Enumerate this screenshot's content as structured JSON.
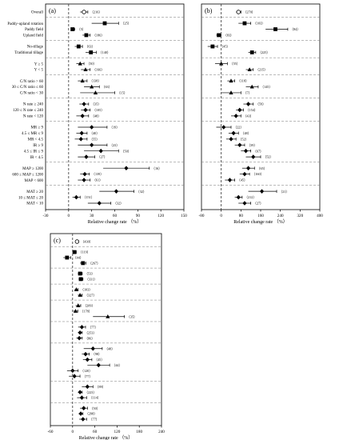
{
  "chart_data": [
    {
      "type": "forest",
      "panel_label": "(a)",
      "xlabel": "Relative change rate （%）",
      "xlim": [
        -30,
        150
      ],
      "xticks": [
        -30,
        0,
        30,
        60,
        90,
        120,
        150
      ],
      "groups": [
        [
          {
            "label": "Overall",
            "mean": 20,
            "lo": 15,
            "hi": 25,
            "n": "216",
            "marker": "circle-open"
          }
        ],
        [
          {
            "label": "Paddy-upland rotation",
            "mean": 47,
            "lo": 30,
            "hi": 65,
            "n": "25",
            "marker": "square"
          },
          {
            "label": "Paddy field",
            "mean": 5,
            "lo": 3,
            "hi": 8,
            "n": "5",
            "marker": "square"
          },
          {
            "label": "Upland field",
            "mean": 23,
            "lo": 18,
            "hi": 28,
            "n": "186",
            "marker": "square"
          }
        ],
        [
          {
            "label": "No-tillage",
            "mean": 13,
            "lo": 8,
            "hi": 18,
            "n": "63",
            "marker": "square"
          },
          {
            "label": "Traditional tillage",
            "mean": 29,
            "lo": 22,
            "hi": 36,
            "n": "140",
            "marker": "square"
          }
        ],
        [
          {
            "label": "Y ≥ 5",
            "mean": 15,
            "lo": 10,
            "hi": 20,
            "n": "50",
            "marker": "triangle"
          },
          {
            "label": "Y < 5",
            "mean": 22,
            "lo": 16,
            "hi": 28,
            "n": "166",
            "marker": "triangle"
          }
        ],
        [
          {
            "label": "C/N ratio > 60",
            "mean": 18,
            "lo": 12,
            "hi": 24,
            "n": "138",
            "marker": "triangle"
          },
          {
            "label": "30 ≤ C/N ratio ≤ 60",
            "mean": 30,
            "lo": 20,
            "hi": 40,
            "n": "63",
            "marker": "triangle"
          },
          {
            "label": "C/N ratio < 30",
            "mean": 35,
            "lo": 15,
            "hi": 60,
            "n": "15",
            "marker": "triangle"
          }
        ],
        [
          {
            "label": "N rate ≥ 240",
            "mean": 20,
            "lo": 14,
            "hi": 26,
            "n": "35",
            "marker": "diamond"
          },
          {
            "label": "120 ≤ N rate ≤ 240",
            "mean": 22,
            "lo": 16,
            "hi": 28,
            "n": "105",
            "marker": "diamond"
          },
          {
            "label": "N rate < 120",
            "mean": 18,
            "lo": 10,
            "hi": 26,
            "n": "48",
            "marker": "diamond"
          }
        ],
        [
          {
            "label": "MR ≥ 9",
            "mean": 30,
            "lo": 12,
            "hi": 50,
            "n": "19",
            "marker": "diamond"
          },
          {
            "label": "4.5 ≤ MR ≤ 9",
            "mean": 17,
            "lo": 10,
            "hi": 24,
            "n": "40",
            "marker": "diamond"
          },
          {
            "label": "MR < 4.5",
            "mean": 16,
            "lo": 8,
            "hi": 24,
            "n": "55",
            "marker": "diamond"
          },
          {
            "label": "IR ≥ 9",
            "mean": 30,
            "lo": 12,
            "hi": 50,
            "n": "23",
            "marker": "diamond"
          },
          {
            "label": "4.5 ≤ IR ≤ 9",
            "mean": 42,
            "lo": 20,
            "hi": 65,
            "n": "50",
            "marker": "diamond"
          },
          {
            "label": "IR < 4.5",
            "mean": 23,
            "lo": 12,
            "hi": 34,
            "n": "27",
            "marker": "diamond"
          }
        ],
        [
          {
            "label": "MAP ≥ 1200",
            "mean": 75,
            "lo": 45,
            "hi": 105,
            "n": "16",
            "marker": "diamond"
          },
          {
            "label": "600 ≤ MAP ≤ 1200",
            "mean": 21,
            "lo": 15,
            "hi": 27,
            "n": "139",
            "marker": "diamond"
          },
          {
            "label": "MAP < 600",
            "mean": 20,
            "lo": 12,
            "hi": 28,
            "n": "61",
            "marker": "diamond"
          }
        ],
        [
          {
            "label": "MAT ≥ 20",
            "mean": 62,
            "lo": 40,
            "hi": 85,
            "n": "32",
            "marker": "diamond"
          },
          {
            "label": "10 ≤ MAT ≤ 20",
            "mean": 10,
            "lo": 5,
            "hi": 15,
            "n": "151",
            "marker": "diamond"
          },
          {
            "label": "MAT < 10",
            "mean": 40,
            "lo": 25,
            "hi": 55,
            "n": "32",
            "marker": "diamond"
          }
        ]
      ]
    },
    {
      "type": "forest",
      "panel_label": "(b)",
      "xlabel": "Relative change rate （%）",
      "xlim": [
        -80,
        400
      ],
      "xticks": [
        -80,
        0,
        80,
        160,
        240,
        320,
        400
      ],
      "groups": [
        [
          {
            "label": "",
            "mean": 70,
            "lo": 60,
            "hi": 80,
            "n": "270",
            "marker": "circle-open"
          }
        ],
        [
          {
            "label": "",
            "mean": 95,
            "lo": 70,
            "hi": 120,
            "n": "103",
            "marker": "square"
          },
          {
            "label": "",
            "mean": 220,
            "lo": 180,
            "hi": 270,
            "n": "84",
            "marker": "square"
          },
          {
            "label": "",
            "mean": -10,
            "lo": -20,
            "hi": 0,
            "n": "83",
            "marker": "square"
          }
        ],
        [
          {
            "label": "",
            "mean": -35,
            "lo": -55,
            "hi": -15,
            "n": "45",
            "marker": "square"
          },
          {
            "label": "",
            "mean": 125,
            "lo": 110,
            "hi": 140,
            "n": "225",
            "marker": "square"
          }
        ],
        [
          {
            "label": "",
            "mean": 0,
            "lo": -25,
            "hi": 25,
            "n": "55",
            "marker": "triangle"
          },
          {
            "label": "",
            "mean": 115,
            "lo": 100,
            "hi": 130,
            "n": "215",
            "marker": "triangle"
          }
        ],
        [
          {
            "label": "",
            "mean": 40,
            "lo": 25,
            "hi": 55,
            "n": "118",
            "marker": "triangle"
          },
          {
            "label": "",
            "mean": 125,
            "lo": 100,
            "hi": 150,
            "n": "145",
            "marker": "triangle"
          },
          {
            "label": "",
            "mean": 40,
            "lo": 0,
            "hi": 80,
            "n": "7",
            "marker": "triangle"
          }
        ],
        [
          {
            "label": "",
            "mean": 110,
            "lo": 90,
            "hi": 130,
            "n": "59",
            "marker": "diamond"
          },
          {
            "label": "",
            "mean": 75,
            "lo": 60,
            "hi": 90,
            "n": "154",
            "marker": "diamond"
          },
          {
            "label": "",
            "mean": 60,
            "lo": 40,
            "hi": 80,
            "n": "43",
            "marker": "diamond"
          }
        ],
        [
          {
            "label": "",
            "mean": 10,
            "lo": -20,
            "hi": 40,
            "n": "22",
            "marker": "diamond"
          },
          {
            "label": "",
            "mean": 50,
            "lo": 30,
            "hi": 70,
            "n": "48",
            "marker": "diamond"
          },
          {
            "label": "",
            "mean": 40,
            "lo": 20,
            "hi": 60,
            "n": "52",
            "marker": "diamond"
          },
          {
            "label": "",
            "mean": 75,
            "lo": 55,
            "hi": 95,
            "n": "39",
            "marker": "diamond"
          },
          {
            "label": "",
            "mean": 100,
            "lo": 80,
            "hi": 120,
            "n": "67",
            "marker": "diamond"
          },
          {
            "label": "",
            "mean": 130,
            "lo": 100,
            "hi": 160,
            "n": "52",
            "marker": "diamond"
          }
        ],
        [
          {
            "label": "",
            "mean": 110,
            "lo": 85,
            "hi": 135,
            "n": "65",
            "marker": "diamond"
          },
          {
            "label": "",
            "mean": 95,
            "lo": 75,
            "hi": 115,
            "n": "160",
            "marker": "diamond"
          },
          {
            "label": "",
            "mean": 35,
            "lo": 15,
            "hi": 55,
            "n": "45",
            "marker": "diamond"
          }
        ],
        [
          {
            "label": "",
            "mean": 165,
            "lo": 110,
            "hi": 225,
            "n": "21",
            "marker": "diamond"
          },
          {
            "label": "",
            "mean": 70,
            "lo": 55,
            "hi": 85,
            "n": "212",
            "marker": "diamond"
          },
          {
            "label": "",
            "mean": 95,
            "lo": 70,
            "hi": 120,
            "n": "27",
            "marker": "diamond"
          }
        ]
      ]
    },
    {
      "type": "forest",
      "panel_label": "(c)",
      "xlabel": "Relative change rate （%）",
      "xlim": [
        -60,
        240
      ],
      "xticks": [
        -60,
        0,
        60,
        120,
        180,
        240
      ],
      "groups": [
        [
          {
            "label": "",
            "mean": 12,
            "lo": 8,
            "hi": 16,
            "n": "430",
            "marker": "circle-open"
          }
        ],
        [
          {
            "label": "",
            "mean": 5,
            "lo": 0,
            "hi": 10,
            "n": "119",
            "marker": "square"
          },
          {
            "label": "",
            "mean": -15,
            "lo": -25,
            "hi": -5,
            "n": "44",
            "marker": "square"
          },
          {
            "label": "",
            "mean": 28,
            "lo": 20,
            "hi": 36,
            "n": "267",
            "marker": "square"
          }
        ],
        [
          {
            "label": "",
            "mean": 20,
            "lo": 14,
            "hi": 26,
            "n": "53",
            "marker": "square"
          },
          {
            "label": "",
            "mean": 22,
            "lo": 16,
            "hi": 28,
            "n": "331",
            "marker": "square"
          }
        ],
        [
          {
            "label": "",
            "mean": 10,
            "lo": 5,
            "hi": 15,
            "n": "103",
            "marker": "triangle"
          },
          {
            "label": "",
            "mean": 20,
            "lo": 14,
            "hi": 26,
            "n": "327",
            "marker": "triangle"
          }
        ],
        [
          {
            "label": "",
            "mean": 15,
            "lo": 8,
            "hi": 22,
            "n": "209",
            "marker": "triangle"
          },
          {
            "label": "",
            "mean": 8,
            "lo": 2,
            "hi": 14,
            "n": "178",
            "marker": "triangle"
          },
          {
            "label": "",
            "mean": 95,
            "lo": 55,
            "hi": 140,
            "n": "35",
            "marker": "triangle"
          }
        ],
        [
          {
            "label": "",
            "mean": 25,
            "lo": 15,
            "hi": 35,
            "n": "77",
            "marker": "diamond"
          },
          {
            "label": "",
            "mean": 20,
            "lo": 14,
            "hi": 26,
            "n": "253",
            "marker": "diamond"
          },
          {
            "label": "",
            "mean": 18,
            "lo": 10,
            "hi": 26,
            "n": "86",
            "marker": "diamond"
          }
        ],
        [
          {
            "label": "",
            "mean": 55,
            "lo": 30,
            "hi": 80,
            "n": "48",
            "marker": "diamond"
          },
          {
            "label": "",
            "mean": 35,
            "lo": 25,
            "hi": 45,
            "n": "98",
            "marker": "diamond"
          },
          {
            "label": "",
            "mean": 40,
            "lo": 28,
            "hi": 52,
            "n": "45",
            "marker": "diamond"
          },
          {
            "label": "",
            "mean": 70,
            "lo": 40,
            "hi": 100,
            "n": "44",
            "marker": "diamond"
          },
          {
            "label": "",
            "mean": 0,
            "lo": -15,
            "hi": 15,
            "n": "120",
            "marker": "diamond"
          },
          {
            "label": "",
            "mean": 5,
            "lo": -10,
            "hi": 20,
            "n": "77",
            "marker": "diamond"
          }
        ],
        [
          {
            "label": "",
            "mean": 40,
            "lo": 25,
            "hi": 55,
            "n": "89",
            "marker": "diamond"
          },
          {
            "label": "",
            "mean": 20,
            "lo": 14,
            "hi": 26,
            "n": "223",
            "marker": "diamond"
          },
          {
            "label": "",
            "mean": 25,
            "lo": 12,
            "hi": 38,
            "n": "114",
            "marker": "diamond"
          }
        ],
        [
          {
            "label": "",
            "mean": 30,
            "lo": 20,
            "hi": 40,
            "n": "50",
            "marker": "diamond"
          },
          {
            "label": "",
            "mean": 22,
            "lo": 16,
            "hi": 28,
            "n": "298",
            "marker": "diamond"
          },
          {
            "label": "",
            "mean": 28,
            "lo": 18,
            "hi": 38,
            "n": "77",
            "marker": "diamond"
          }
        ]
      ]
    }
  ]
}
